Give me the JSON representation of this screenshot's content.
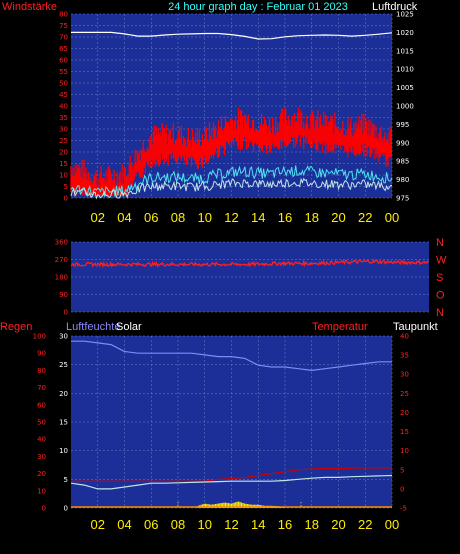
{
  "header": {
    "title": "24 hour graph day : Februar 01 2023",
    "left_label": "Windstärke",
    "right_label": "Luftdruck"
  },
  "colors": {
    "plot_bg": "#1c2f99",
    "grid": "#6e7fc4",
    "wind_bar": "#ff0000",
    "wind_avg": "#bfe6e6",
    "wind_base": "#4fe3f0",
    "pressure": "#ffffff",
    "direction": "#ff2020",
    "humidity": "#7d8cf5",
    "temperature": "#cc0000",
    "dewpoint": "#bfe6e6",
    "solar": "#ffee00",
    "x_label": "#ffee00",
    "title_text": "#33ffff",
    "red_text": "#ff2020",
    "purple_text": "#8a8aff"
  },
  "x_ticks": [
    "02",
    "04",
    "06",
    "08",
    "10",
    "12",
    "14",
    "16",
    "18",
    "20",
    "22",
    "00"
  ],
  "direction_panel": {
    "letters": [
      "N",
      "W",
      "S",
      "O",
      "N"
    ]
  },
  "bottom_panel": {
    "label_regen": "Regen",
    "label_humidity": "Luftfeuchte",
    "label_solar": "Solar",
    "label_temperature": "Temperatur",
    "label_dewpoint": "Taupunkt"
  },
  "chart_data": [
    {
      "type": "line",
      "title": "24 hour graph day : Februar 01 2023",
      "series": [
        {
          "name": "Windstärke",
          "axis": "left",
          "x": [
            0,
            1,
            2,
            3,
            4,
            5,
            6,
            7,
            8,
            9,
            10,
            11,
            12,
            13,
            14,
            15,
            16,
            17,
            18,
            19,
            20,
            21,
            22,
            23,
            24
          ],
          "values": [
            12,
            10,
            7,
            8,
            9,
            18,
            25,
            26,
            26,
            24,
            25,
            29,
            32,
            33,
            31,
            30,
            33,
            34,
            32,
            31,
            30,
            29,
            30,
            27,
            24
          ]
        },
        {
          "name": "Luftdruck",
          "axis": "right",
          "x": [
            0,
            1,
            2,
            3,
            4,
            5,
            6,
            7,
            8,
            9,
            10,
            11,
            12,
            13,
            14,
            15,
            16,
            17,
            18,
            19,
            20,
            21,
            22,
            23,
            24
          ],
          "values": [
            1020,
            1020,
            1020,
            1020,
            1019.6,
            1019,
            1019,
            1019.3,
            1019.5,
            1019.6,
            1019.7,
            1019.7,
            1019.4,
            1018.9,
            1018.2,
            1018.3,
            1018.8,
            1019.1,
            1019.2,
            1019.3,
            1019.2,
            1019.0,
            1019.2,
            1019.5,
            1019.9
          ]
        }
      ],
      "y_left": {
        "min": 0,
        "max": 80,
        "step": 5
      },
      "y_right": {
        "min": 975,
        "max": 1025,
        "step": 5
      },
      "x_range": [
        0,
        24
      ],
      "grid": true
    },
    {
      "type": "scatter",
      "series": [
        {
          "name": "Windrichtung",
          "x": [
            0,
            2,
            4,
            6,
            8,
            10,
            12,
            14,
            16,
            18,
            20,
            22,
            24
          ],
          "values": [
            245,
            245,
            245,
            245,
            245,
            245,
            245,
            250,
            250,
            255,
            260,
            255,
            255
          ]
        }
      ],
      "y": {
        "min": 0,
        "max": 360,
        "ticks": [
          0,
          90,
          180,
          270,
          360
        ]
      },
      "x_range": [
        0,
        24
      ],
      "grid": true
    },
    {
      "type": "line",
      "series": [
        {
          "name": "Luftfeuchte",
          "axis": "left",
          "x": [
            0,
            1,
            2,
            3,
            4,
            5,
            6,
            7,
            8,
            9,
            10,
            11,
            12,
            13,
            14,
            15,
            16,
            17,
            18,
            19,
            20,
            21,
            22,
            23,
            24
          ],
          "values": [
            97,
            97,
            96,
            95,
            91,
            90,
            90,
            90,
            90,
            90,
            89,
            88,
            88,
            87,
            83,
            82,
            82,
            81,
            80,
            81,
            82,
            83,
            84,
            85,
            85
          ]
        },
        {
          "name": "Temperatur",
          "axis": "right",
          "x": [
            0,
            1,
            2,
            3,
            4,
            5,
            6,
            7,
            8,
            9,
            10,
            11,
            12,
            13,
            14,
            15,
            16,
            17,
            18,
            19,
            20,
            21,
            22,
            23,
            24
          ],
          "values": [
            2,
            2,
            2,
            2,
            2,
            2,
            2,
            2,
            2,
            2,
            2,
            2.5,
            2.7,
            3,
            3.5,
            4,
            4.5,
            5,
            5.2,
            5.3,
            5.3,
            5.4,
            5.5,
            5.5,
            5.5
          ]
        },
        {
          "name": "Taupunkt",
          "axis": "right",
          "x": [
            0,
            1,
            2,
            3,
            4,
            5,
            6,
            7,
            8,
            9,
            10,
            11,
            12,
            13,
            14,
            15,
            16,
            17,
            18,
            19,
            20,
            21,
            22,
            23,
            24
          ],
          "values": [
            1.5,
            1,
            0,
            0,
            0.5,
            1,
            1.5,
            1.5,
            1.6,
            1.7,
            1.8,
            1.9,
            2,
            2,
            2,
            2,
            2.2,
            2.5,
            2.8,
            3,
            3,
            3.2,
            3.3,
            3.4,
            3.5
          ]
        },
        {
          "name": "Solar",
          "axis": "left",
          "x": [
            9.5,
            10,
            10.5,
            11,
            11.5,
            12,
            12.5,
            13,
            13.5,
            14,
            14.5,
            15,
            15.5,
            16
          ],
          "values": [
            1,
            2,
            1.5,
            2,
            2.5,
            2,
            3,
            2,
            1.5,
            1.5,
            1,
            1,
            0.8,
            0.5
          ]
        }
      ],
      "y_left": {
        "min": 0,
        "max": 100,
        "step": 5
      },
      "y_mid": {
        "min": 0,
        "max": 30,
        "step": 5
      },
      "y_right": {
        "min": -5,
        "max": 40,
        "step": 5
      },
      "x_range": [
        0,
        24
      ],
      "grid": true
    }
  ]
}
